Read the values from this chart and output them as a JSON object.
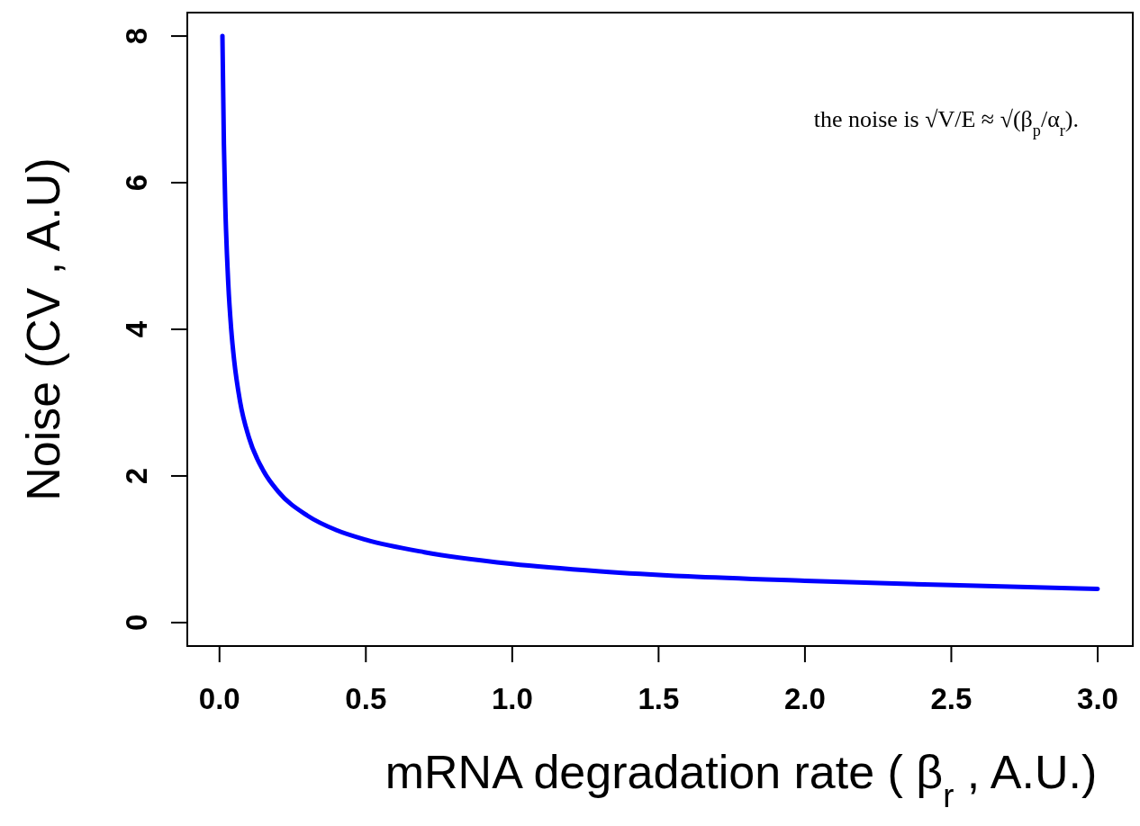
{
  "chart_data": {
    "type": "line",
    "xlabel": "mRNA degradation rate ( β$_{r}$ , A.U.)",
    "ylabel": "Noise (CV , A.U)",
    "annotations": [
      "the noise is √V/E ≈ √(β$_{p}$/α$_{r}$)."
    ],
    "x": [
      0.01,
      0.015,
      0.02,
      0.03,
      0.04,
      0.05,
      0.07,
      0.1,
      0.15,
      0.2,
      0.3,
      0.4,
      0.5,
      0.7,
      1.0,
      1.3,
      1.6,
      2.0,
      2.5,
      3.0
    ],
    "series": [
      {
        "color": "#0000ff",
        "values": [
          8,
          6.53,
          5.66,
          4.62,
          4.0,
          3.58,
          3.02,
          2.53,
          2.07,
          1.79,
          1.46,
          1.26,
          1.13,
          0.96,
          0.8,
          0.7,
          0.63,
          0.57,
          0.51,
          0.46
        ]
      }
    ],
    "xlim": [
      -0.11,
      3.12
    ],
    "ylim": [
      -0.32,
      8.32
    ],
    "xticks": [
      {
        "value": 0,
        "label": "0.0"
      },
      {
        "value": 0.5,
        "label": "0.5"
      },
      {
        "value": 1,
        "label": "1.0"
      },
      {
        "value": 1.5,
        "label": "1.5"
      },
      {
        "value": 2,
        "label": "2.0"
      },
      {
        "value": 2.5,
        "label": "2.5"
      },
      {
        "value": 3,
        "label": "3.0"
      }
    ],
    "yticks": [
      0,
      2,
      4,
      6,
      8
    ],
    "grid": false,
    "marker": "none",
    "line_style": "solid"
  }
}
